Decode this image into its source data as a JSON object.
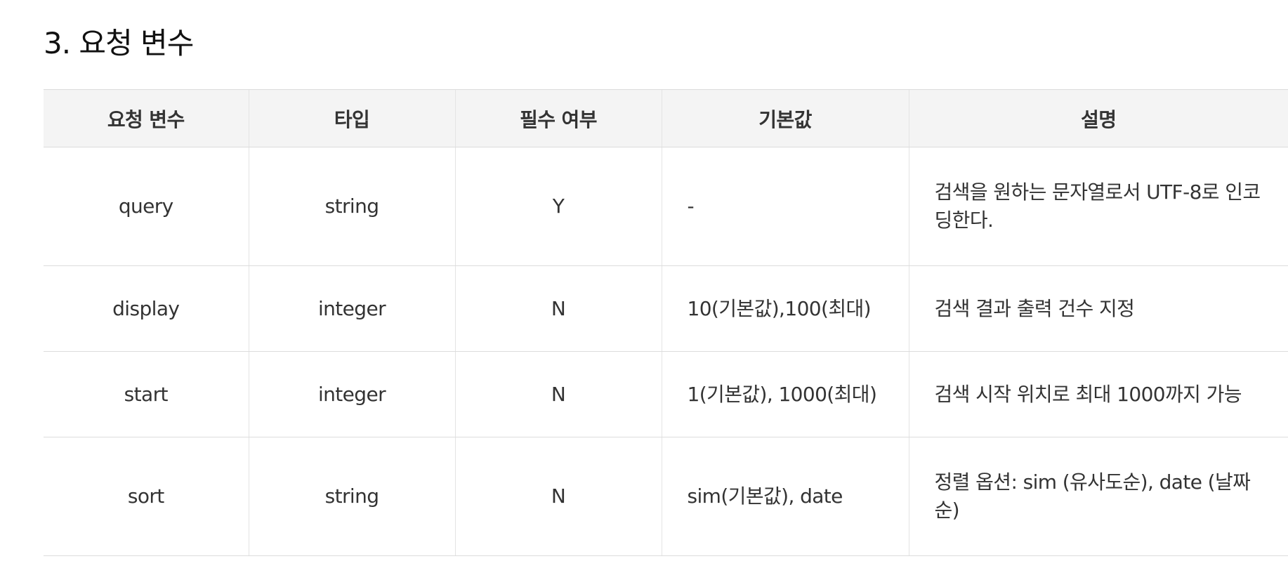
{
  "section": {
    "title": "3. 요청 변수"
  },
  "table": {
    "headers": [
      "요청 변수",
      "타입",
      "필수 여부",
      "기본값",
      "설명"
    ],
    "rows": [
      {
        "name": "query",
        "type": "string",
        "required": "Y",
        "default": "-",
        "description": "검색을 원하는 문자열로서 UTF-8로 인코딩한다."
      },
      {
        "name": "display",
        "type": "integer",
        "required": "N",
        "default": "10(기본값),100(최대)",
        "description": "검색 결과 출력 건수 지정"
      },
      {
        "name": "start",
        "type": "integer",
        "required": "N",
        "default": "1(기본값), 1000(최대)",
        "description": "검색 시작 위치로 최대 1000까지 가능"
      },
      {
        "name": "sort",
        "type": "string",
        "required": "N",
        "default": "sim(기본값), date",
        "description": "정렬 옵션: sim (유사도순), date (날짜순)"
      }
    ]
  }
}
